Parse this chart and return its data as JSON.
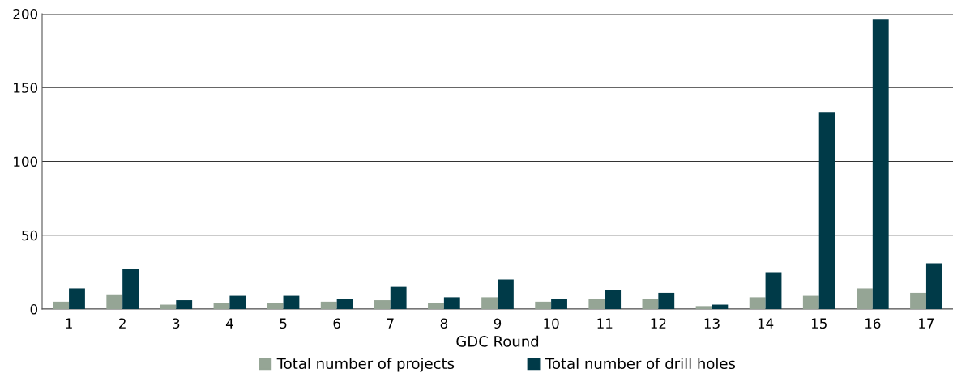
{
  "chart_data": {
    "type": "bar",
    "xlabel": "GDC Round",
    "categories": [
      "1",
      "2",
      "3",
      "4",
      "5",
      "6",
      "7",
      "8",
      "9",
      "10",
      "11",
      "12",
      "13",
      "14",
      "15",
      "16",
      "17"
    ],
    "series": [
      {
        "name": "Total number of projects",
        "color": "#95a595",
        "values": [
          5,
          10,
          3,
          4,
          4,
          5,
          6,
          4,
          8,
          5,
          7,
          7,
          2,
          8,
          9,
          14,
          11
        ]
      },
      {
        "name": "Total number of drill holes",
        "color": "#003a48",
        "values": [
          14,
          27,
          6,
          9,
          9,
          7,
          15,
          8,
          20,
          7,
          13,
          11,
          3,
          25,
          133,
          196,
          31
        ]
      }
    ],
    "ylim": [
      0,
      200
    ],
    "yticks": [
      0,
      50,
      100,
      150,
      200
    ],
    "grid": "y",
    "legend": "bottom"
  }
}
